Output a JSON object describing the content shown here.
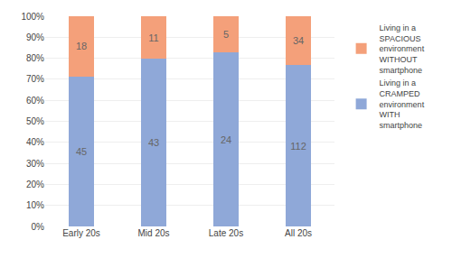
{
  "chart_data": {
    "type": "bar",
    "stacked": true,
    "categories": [
      "Early 20s",
      "Mid 20s",
      "Late 20s",
      "All 20s"
    ],
    "series": [
      {
        "name": "Living in a\nCRAMPED\nenvironment\nWITH\nsmartphone",
        "color": "#8FA8D8",
        "values": [
          71.43,
          79.63,
          82.76,
          76.71
        ],
        "counts": [
          45,
          43,
          24,
          112
        ]
      },
      {
        "name": "Living in a\nSPACIOUS\nenvironment\nWITHOUT\nsmartphone",
        "color": "#F4A07A",
        "values": [
          28.57,
          20.37,
          17.24,
          23.29
        ],
        "counts": [
          18,
          11,
          5,
          34
        ]
      }
    ],
    "ylim": [
      0,
      100
    ],
    "yticks": [
      {
        "value": 0,
        "label": "0%"
      },
      {
        "value": 10,
        "label": "10%"
      },
      {
        "value": 20,
        "label": "20%"
      },
      {
        "value": 30,
        "label": "30%"
      },
      {
        "value": 40,
        "label": "40%"
      },
      {
        "value": 50,
        "label": "50%"
      },
      {
        "value": 60,
        "label": "60%"
      },
      {
        "value": 70,
        "label": "70%"
      },
      {
        "value": 80,
        "label": "80%"
      },
      {
        "value": 90,
        "label": "90%"
      },
      {
        "value": 100,
        "label": "100%"
      }
    ],
    "grid": true,
    "legend": "right"
  }
}
